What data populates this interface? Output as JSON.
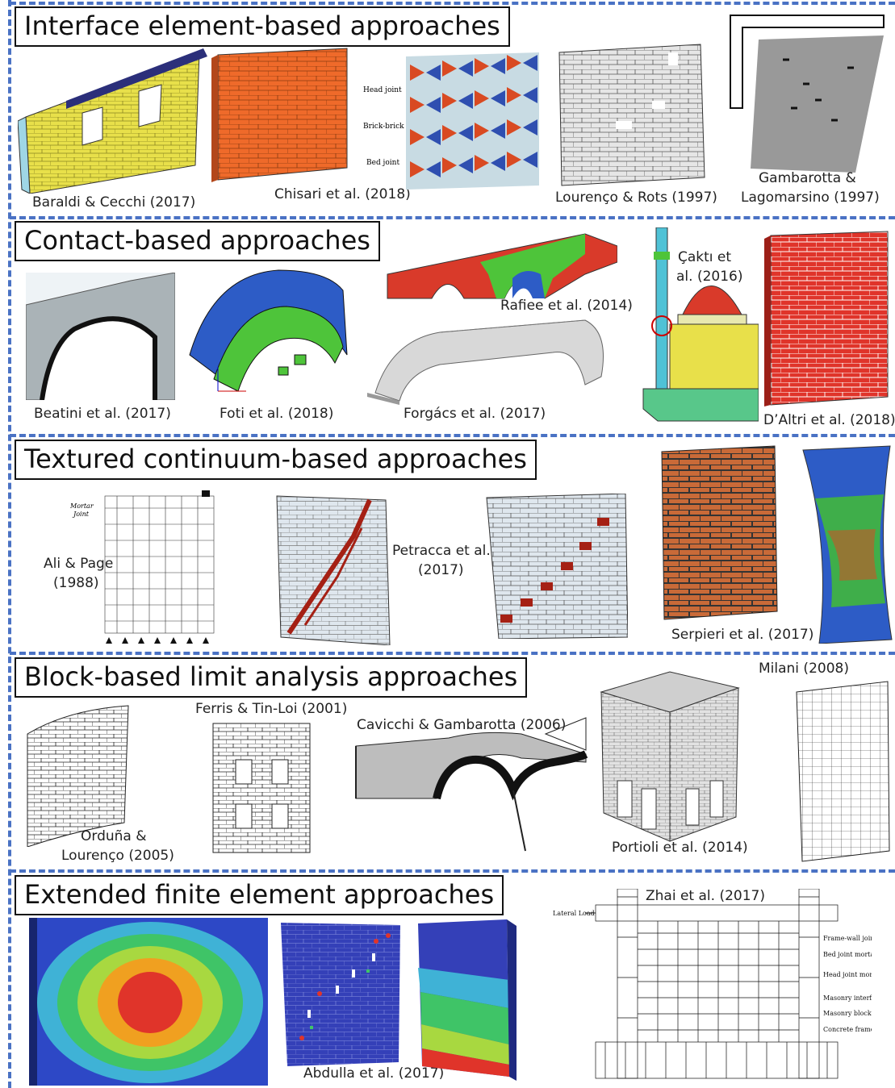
{
  "sections": [
    {
      "title": "Interface element-based approaches",
      "captions": [
        "Baraldi & Cecchi (2017)",
        "Chisari et al. (2018)",
        "Lourenço & Rots (1997)",
        "Gambarotta &",
        "Lagomarsino (1997)"
      ],
      "labels": [
        "Head joint",
        "Brick-brick",
        "Bed joint"
      ]
    },
    {
      "title": "Contact-based approaches",
      "captions": [
        "Beatini et al. (2017)",
        "Foti et al. (2018)",
        "Rafiee et al. (2014)",
        "Forgács et al. (2017)",
        "Çaktı et",
        "al. (2016)",
        "D’Altri et al. (2018)"
      ]
    },
    {
      "title": "Textured continuum-based approaches",
      "captions": [
        "Ali & Page",
        "(1988)",
        "Petracca et al.",
        "(2017)",
        "Serpieri et al. (2017)"
      ],
      "labels": [
        "Mortar",
        "Joint"
      ]
    },
    {
      "title": "Block-based limit analysis approaches",
      "captions": [
        "Ferris & Tin-Loi (2001)",
        "Cavicchi & Gambarotta (2006)",
        "Orduña &",
        "Lourenço (2005)",
        "Portioli et al. (2014)",
        "Milani (2008)"
      ]
    },
    {
      "title": "Extended finite element approaches",
      "captions": [
        "Abdulla et al. (2017)",
        "Zhai et al. (2017)"
      ],
      "labels": [
        "Lateral Load",
        "Frame-wall joint mortar",
        "Bed joint mortar",
        "Head joint mortar",
        "Masonry interface",
        "Masonry block",
        "Concrete frame"
      ]
    }
  ],
  "colors": {
    "separator": "#4a72c4",
    "yellow_wall": "#e8e04a",
    "orange_wall": "#ef6a2a",
    "red_wall": "#e0342a",
    "blue_contour": "#3a4fc4",
    "green": "#45b54a"
  }
}
